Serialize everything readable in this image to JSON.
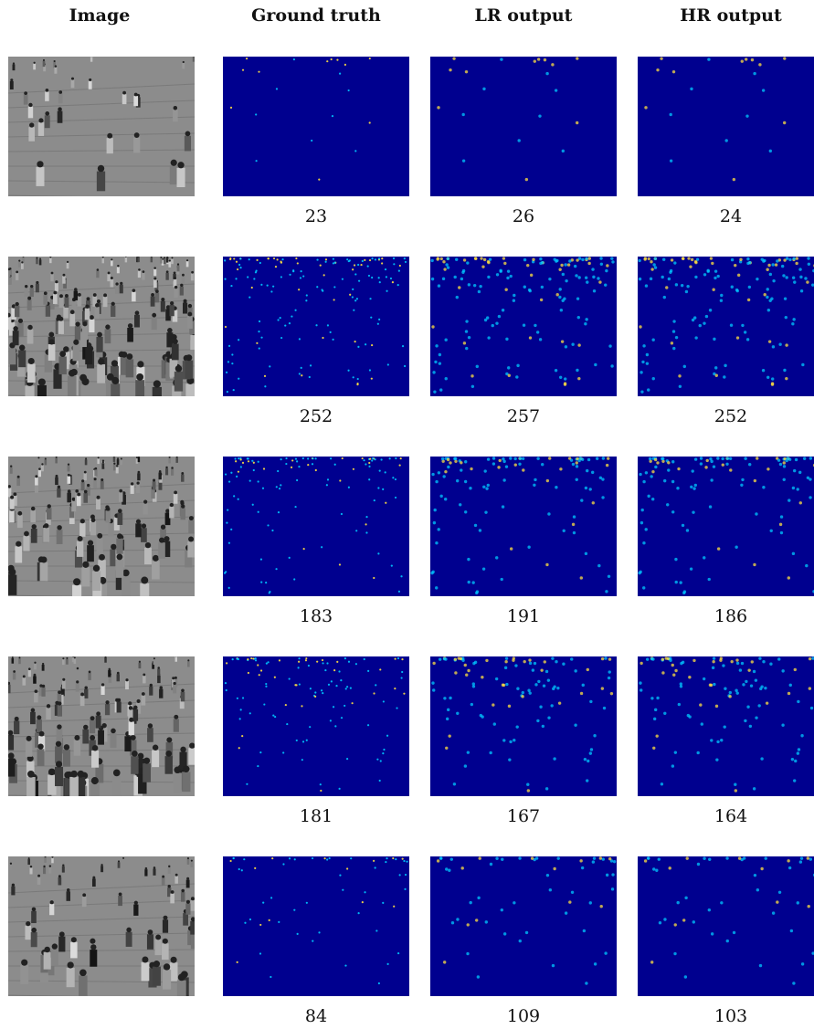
{
  "headers": {
    "image": "Image",
    "ground_truth": "Ground truth",
    "lr_output": "LR output",
    "hr_output": "HR output"
  },
  "rows": [
    {
      "ground_truth": "23",
      "lr_output": "26",
      "hr_output": "24"
    },
    {
      "ground_truth": "252",
      "lr_output": "257",
      "hr_output": "252"
    },
    {
      "ground_truth": "183",
      "lr_output": "191",
      "hr_output": "186"
    },
    {
      "ground_truth": "181",
      "lr_output": "167",
      "hr_output": "164"
    },
    {
      "ground_truth": "84",
      "lr_output": "109",
      "hr_output": "103"
    }
  ],
  "colors": {
    "heatmap_background": "#00008f",
    "heatmap_low": "#00c8ff",
    "heatmap_high": "#ffe040"
  }
}
